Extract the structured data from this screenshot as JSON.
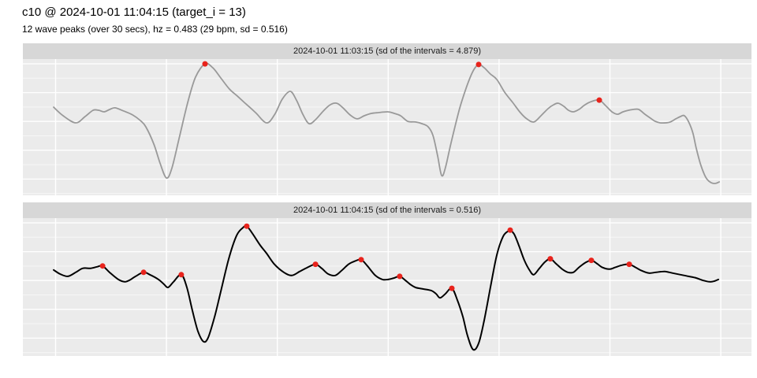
{
  "header": {
    "title": "c10 @ 2024-10-01 11:04:15 (target_i = 13)",
    "subtitle": "12 wave peaks (over 30 secs), hz = 0.483 (29 bpm, sd = 0.516)"
  },
  "colors": {
    "panel_bg": "#ebebeb",
    "strip_bg": "#d7d7d7",
    "grid": "#ffffff",
    "series1": "#999999",
    "series2": "#000000",
    "peak": "#e8231c"
  },
  "chart_data": [
    {
      "type": "line",
      "title": "2024-10-01 11:03:15 (sd of the intervals = 4.879)",
      "x_unit": "seconds",
      "x_range": [
        0,
        30
      ],
      "x_gridline_step": 5,
      "y_axis": "normalized amplitude 0-1 (no axis labels shown in figure)",
      "n_peaks": 3,
      "line_color_key": "series1",
      "points": [
        [
          -0.09,
          0.647
        ],
        [
          0.34,
          0.584
        ],
        [
          0.91,
          0.532
        ],
        [
          1.33,
          0.578
        ],
        [
          1.69,
          0.624
        ],
        [
          1.94,
          0.624
        ],
        [
          2.19,
          0.613
        ],
        [
          2.44,
          0.63
        ],
        [
          2.68,
          0.642
        ],
        [
          3.08,
          0.618
        ],
        [
          3.47,
          0.59
        ],
        [
          3.82,
          0.549
        ],
        [
          4.07,
          0.503
        ],
        [
          4.43,
          0.376
        ],
        [
          4.71,
          0.237
        ],
        [
          5.0,
          0.127
        ],
        [
          5.25,
          0.202
        ],
        [
          5.6,
          0.439
        ],
        [
          5.96,
          0.682
        ],
        [
          6.31,
          0.867
        ],
        [
          6.74,
          0.965
        ],
        [
          7.09,
          0.936
        ],
        [
          7.45,
          0.861
        ],
        [
          7.84,
          0.78
        ],
        [
          8.2,
          0.728
        ],
        [
          8.55,
          0.676
        ],
        [
          9.02,
          0.607
        ],
        [
          9.51,
          0.532
        ],
        [
          9.87,
          0.59
        ],
        [
          10.22,
          0.705
        ],
        [
          10.58,
          0.763
        ],
        [
          10.86,
          0.699
        ],
        [
          11.15,
          0.595
        ],
        [
          11.43,
          0.526
        ],
        [
          11.72,
          0.555
        ],
        [
          12.07,
          0.618
        ],
        [
          12.39,
          0.665
        ],
        [
          12.68,
          0.676
        ],
        [
          12.96,
          0.642
        ],
        [
          13.28,
          0.59
        ],
        [
          13.6,
          0.561
        ],
        [
          13.92,
          0.584
        ],
        [
          14.24,
          0.601
        ],
        [
          14.56,
          0.607
        ],
        [
          14.99,
          0.613
        ],
        [
          15.27,
          0.601
        ],
        [
          15.56,
          0.584
        ],
        [
          15.88,
          0.543
        ],
        [
          16.23,
          0.538
        ],
        [
          16.52,
          0.526
        ],
        [
          16.8,
          0.503
        ],
        [
          17.02,
          0.439
        ],
        [
          17.23,
          0.289
        ],
        [
          17.41,
          0.145
        ],
        [
          17.58,
          0.202
        ],
        [
          17.83,
          0.382
        ],
        [
          18.22,
          0.636
        ],
        [
          18.54,
          0.798
        ],
        [
          18.83,
          0.913
        ],
        [
          19.08,
          0.96
        ],
        [
          19.33,
          0.936
        ],
        [
          19.61,
          0.89
        ],
        [
          19.9,
          0.85
        ],
        [
          20.25,
          0.757
        ],
        [
          20.61,
          0.682
        ],
        [
          20.96,
          0.607
        ],
        [
          21.25,
          0.561
        ],
        [
          21.57,
          0.538
        ],
        [
          21.89,
          0.584
        ],
        [
          22.21,
          0.636
        ],
        [
          22.46,
          0.665
        ],
        [
          22.67,
          0.676
        ],
        [
          22.92,
          0.653
        ],
        [
          23.13,
          0.624
        ],
        [
          23.35,
          0.613
        ],
        [
          23.6,
          0.63
        ],
        [
          23.88,
          0.665
        ],
        [
          24.16,
          0.688
        ],
        [
          24.52,
          0.699
        ],
        [
          24.8,
          0.659
        ],
        [
          25.09,
          0.613
        ],
        [
          25.34,
          0.595
        ],
        [
          25.59,
          0.613
        ],
        [
          25.84,
          0.624
        ],
        [
          26.05,
          0.63
        ],
        [
          26.3,
          0.63
        ],
        [
          26.58,
          0.595
        ],
        [
          26.83,
          0.566
        ],
        [
          27.04,
          0.543
        ],
        [
          27.26,
          0.532
        ],
        [
          27.51,
          0.532
        ],
        [
          27.72,
          0.538
        ],
        [
          27.97,
          0.561
        ],
        [
          28.18,
          0.578
        ],
        [
          28.36,
          0.584
        ],
        [
          28.57,
          0.532
        ],
        [
          28.75,
          0.451
        ],
        [
          28.89,
          0.347
        ],
        [
          29.07,
          0.237
        ],
        [
          29.25,
          0.156
        ],
        [
          29.39,
          0.116
        ],
        [
          29.57,
          0.092
        ],
        [
          29.75,
          0.087
        ],
        [
          29.93,
          0.098
        ]
      ],
      "peaks": [
        [
          6.74,
          0.965
        ],
        [
          19.08,
          0.96
        ],
        [
          24.52,
          0.699
        ]
      ]
    },
    {
      "type": "line",
      "title": "2024-10-01 11:04:15 (sd of the intervals = 0.516)",
      "x_unit": "seconds",
      "x_range": [
        0,
        30
      ],
      "x_gridline_step": 5,
      "y_axis": "normalized amplitude 0-1 (no axis labels shown in figure)",
      "n_peaks": 12,
      "line_color_key": "series2",
      "points": [
        [
          -0.09,
          0.624
        ],
        [
          0.2,
          0.595
        ],
        [
          0.55,
          0.578
        ],
        [
          0.91,
          0.607
        ],
        [
          1.23,
          0.636
        ],
        [
          1.58,
          0.636
        ],
        [
          1.87,
          0.647
        ],
        [
          2.12,
          0.653
        ],
        [
          2.47,
          0.601
        ],
        [
          2.83,
          0.555
        ],
        [
          3.11,
          0.538
        ],
        [
          3.33,
          0.549
        ],
        [
          3.61,
          0.578
        ],
        [
          3.97,
          0.607
        ],
        [
          4.25,
          0.59
        ],
        [
          4.64,
          0.555
        ],
        [
          4.89,
          0.52
        ],
        [
          5.07,
          0.497
        ],
        [
          5.32,
          0.538
        ],
        [
          5.67,
          0.59
        ],
        [
          5.92,
          0.497
        ],
        [
          6.17,
          0.329
        ],
        [
          6.42,
          0.179
        ],
        [
          6.67,
          0.104
        ],
        [
          6.88,
          0.133
        ],
        [
          7.17,
          0.283
        ],
        [
          7.45,
          0.468
        ],
        [
          7.81,
          0.705
        ],
        [
          8.16,
          0.873
        ],
        [
          8.45,
          0.931
        ],
        [
          8.62,
          0.942
        ],
        [
          8.87,
          0.89
        ],
        [
          9.23,
          0.803
        ],
        [
          9.51,
          0.746
        ],
        [
          9.87,
          0.665
        ],
        [
          10.29,
          0.607
        ],
        [
          10.65,
          0.584
        ],
        [
          11.01,
          0.613
        ],
        [
          11.36,
          0.642
        ],
        [
          11.72,
          0.665
        ],
        [
          12.0,
          0.636
        ],
        [
          12.29,
          0.595
        ],
        [
          12.61,
          0.584
        ],
        [
          12.89,
          0.618
        ],
        [
          13.21,
          0.665
        ],
        [
          13.5,
          0.688
        ],
        [
          13.78,
          0.699
        ],
        [
          14.06,
          0.653
        ],
        [
          14.42,
          0.584
        ],
        [
          14.74,
          0.555
        ],
        [
          14.99,
          0.555
        ],
        [
          15.27,
          0.566
        ],
        [
          15.52,
          0.578
        ],
        [
          15.77,
          0.549
        ],
        [
          15.99,
          0.52
        ],
        [
          16.23,
          0.497
        ],
        [
          16.59,
          0.486
        ],
        [
          16.95,
          0.474
        ],
        [
          17.16,
          0.451
        ],
        [
          17.34,
          0.422
        ],
        [
          17.58,
          0.451
        ],
        [
          17.87,
          0.491
        ],
        [
          18.12,
          0.405
        ],
        [
          18.37,
          0.283
        ],
        [
          18.58,
          0.145
        ],
        [
          18.83,
          0.046
        ],
        [
          19.08,
          0.092
        ],
        [
          19.33,
          0.26
        ],
        [
          19.61,
          0.497
        ],
        [
          19.9,
          0.734
        ],
        [
          20.18,
          0.867
        ],
        [
          20.43,
          0.908
        ],
        [
          20.5,
          0.913
        ],
        [
          20.68,
          0.884
        ],
        [
          20.89,
          0.803
        ],
        [
          21.14,
          0.694
        ],
        [
          21.39,
          0.618
        ],
        [
          21.57,
          0.59
        ],
        [
          21.82,
          0.636
        ],
        [
          22.07,
          0.682
        ],
        [
          22.31,
          0.705
        ],
        [
          22.56,
          0.671
        ],
        [
          22.85,
          0.63
        ],
        [
          23.1,
          0.607
        ],
        [
          23.35,
          0.607
        ],
        [
          23.6,
          0.642
        ],
        [
          23.88,
          0.676
        ],
        [
          24.16,
          0.694
        ],
        [
          24.41,
          0.671
        ],
        [
          24.66,
          0.642
        ],
        [
          24.98,
          0.63
        ],
        [
          25.23,
          0.642
        ],
        [
          25.55,
          0.659
        ],
        [
          25.87,
          0.665
        ],
        [
          26.16,
          0.642
        ],
        [
          26.44,
          0.618
        ],
        [
          26.76,
          0.601
        ],
        [
          27.08,
          0.607
        ],
        [
          27.47,
          0.613
        ],
        [
          27.83,
          0.601
        ],
        [
          28.18,
          0.59
        ],
        [
          28.54,
          0.578
        ],
        [
          28.89,
          0.566
        ],
        [
          29.18,
          0.549
        ],
        [
          29.5,
          0.538
        ],
        [
          29.71,
          0.543
        ],
        [
          29.89,
          0.555
        ]
      ],
      "peaks": [
        [
          2.12,
          0.653
        ],
        [
          3.97,
          0.607
        ],
        [
          5.67,
          0.59
        ],
        [
          8.62,
          0.942
        ],
        [
          11.72,
          0.665
        ],
        [
          13.78,
          0.699
        ],
        [
          15.52,
          0.578
        ],
        [
          17.87,
          0.491
        ],
        [
          20.5,
          0.913
        ],
        [
          22.31,
          0.705
        ],
        [
          24.16,
          0.694
        ],
        [
          25.87,
          0.665
        ]
      ]
    }
  ]
}
